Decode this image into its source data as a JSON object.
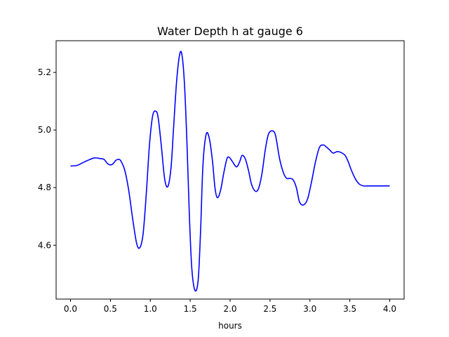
{
  "chart_data": {
    "type": "line",
    "title": "Water Depth h at gauge 6",
    "xlabel": "hours",
    "ylabel": "",
    "xlim": [
      -0.18,
      4.18
    ],
    "ylim": [
      4.413,
      5.31
    ],
    "x_ticks": [
      0.0,
      0.5,
      1.0,
      1.5,
      2.0,
      2.5,
      3.0,
      3.5,
      4.0
    ],
    "x_tick_labels": [
      "0.0",
      "0.5",
      "1.0",
      "1.5",
      "2.0",
      "2.5",
      "3.0",
      "3.5",
      "4.0"
    ],
    "y_ticks": [
      4.6,
      4.8,
      5.0,
      5.2
    ],
    "y_tick_labels": [
      "4.6",
      "4.8",
      "5.0",
      "5.2"
    ],
    "grid": false,
    "series": [
      {
        "color": "#0000ff",
        "x": [
          0.0,
          0.08,
          0.15,
          0.22,
          0.3,
          0.37,
          0.42,
          0.47,
          0.52,
          0.57,
          0.6,
          0.63,
          0.68,
          0.73,
          0.78,
          0.83,
          0.87,
          0.91,
          0.95,
          0.99,
          1.03,
          1.07,
          1.1,
          1.14,
          1.18,
          1.22,
          1.26,
          1.29,
          1.33,
          1.37,
          1.4,
          1.43,
          1.46,
          1.49,
          1.52,
          1.56,
          1.6,
          1.63,
          1.66,
          1.7,
          1.74,
          1.78,
          1.81,
          1.84,
          1.88,
          1.92,
          1.96,
          1.99,
          2.03,
          2.08,
          2.12,
          2.15,
          2.19,
          2.23,
          2.27,
          2.32,
          2.36,
          2.4,
          2.44,
          2.48,
          2.53,
          2.57,
          2.62,
          2.67,
          2.71,
          2.75,
          2.79,
          2.83,
          2.87,
          2.92,
          2.97,
          3.02,
          3.07,
          3.12,
          3.17,
          3.21,
          3.25,
          3.29,
          3.34,
          3.39,
          3.44,
          3.48,
          3.52,
          3.57,
          3.62,
          3.67,
          3.72,
          3.77,
          3.82,
          3.87,
          3.91,
          3.96,
          4.0
        ],
        "y": [
          4.875,
          4.877,
          4.886,
          4.895,
          4.903,
          4.901,
          4.898,
          4.882,
          4.88,
          4.895,
          4.898,
          4.893,
          4.86,
          4.79,
          4.69,
          4.605,
          4.592,
          4.64,
          4.78,
          4.95,
          5.05,
          5.065,
          5.04,
          4.94,
          4.83,
          4.804,
          4.87,
          5.0,
          5.17,
          5.265,
          5.255,
          5.15,
          4.95,
          4.7,
          4.52,
          4.443,
          4.48,
          4.65,
          4.88,
          4.985,
          4.97,
          4.89,
          4.8,
          4.765,
          4.79,
          4.85,
          4.9,
          4.905,
          4.89,
          4.872,
          4.89,
          4.912,
          4.9,
          4.86,
          4.81,
          4.787,
          4.8,
          4.85,
          4.93,
          4.985,
          4.997,
          4.98,
          4.9,
          4.85,
          4.832,
          4.832,
          4.827,
          4.8,
          4.75,
          4.74,
          4.76,
          4.82,
          4.89,
          4.94,
          4.948,
          4.94,
          4.93,
          4.92,
          4.925,
          4.922,
          4.912,
          4.89,
          4.86,
          4.83,
          4.812,
          4.806,
          4.806,
          4.806,
          4.806,
          4.806,
          4.806,
          4.806,
          4.806
        ]
      }
    ]
  }
}
